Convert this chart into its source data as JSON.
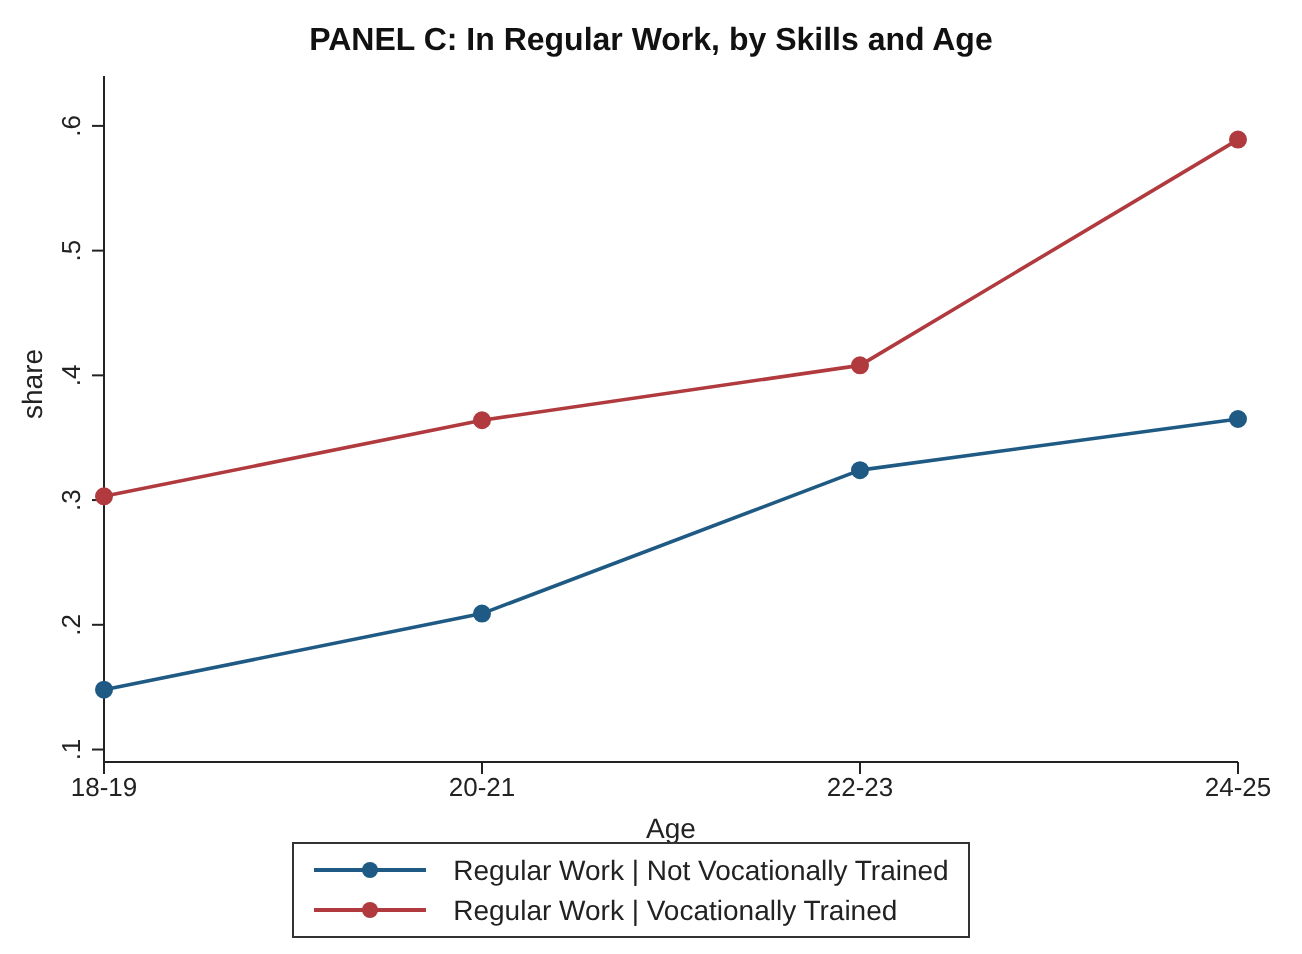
{
  "chart_data": {
    "type": "line",
    "title": "PANEL C: In Regular Work, by Skills and Age",
    "xlabel": "Age",
    "ylabel": "share",
    "categories": [
      "18-19",
      "20-21",
      "22-23",
      "24-25"
    ],
    "series": [
      {
        "name": "Regular Work | Not Vocationally Trained",
        "color": "#1f5a85",
        "values": [
          0.148,
          0.209,
          0.324,
          0.365
        ]
      },
      {
        "name": "Regular Work | Vocationally Trained",
        "color": "#b03a3e",
        "values": [
          0.303,
          0.364,
          0.408,
          0.589
        ]
      }
    ],
    "ylim": [
      0.09,
      0.64
    ],
    "yticks": [
      {
        "value": 0.1,
        "label": ".1"
      },
      {
        "value": 0.2,
        "label": ".2"
      },
      {
        "value": 0.3,
        "label": ".3"
      },
      {
        "value": 0.4,
        "label": ".4"
      },
      {
        "value": 0.5,
        "label": ".5"
      },
      {
        "value": 0.6,
        "label": ".6"
      }
    ],
    "legend": "bottom",
    "marker": "circle",
    "line_style": "solid"
  }
}
